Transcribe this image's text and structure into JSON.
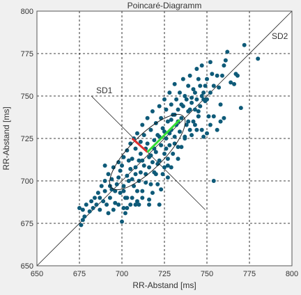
{
  "chart_data": {
    "type": "scatter",
    "title": "Poincaré-Diagramm",
    "xlabel": "RR-Abstand [ms]",
    "ylabel": "RR-Abstand [ms]",
    "xlim": [
      650,
      800
    ],
    "ylim": [
      650,
      800
    ],
    "xticks": [
      "650",
      "675",
      "700",
      "725",
      "750",
      "775",
      "800"
    ],
    "yticks": [
      "650",
      "675",
      "700",
      "725",
      "750",
      "775",
      "800"
    ],
    "grid": true,
    "annotations": {
      "sd1_label": "SD1",
      "sd2_label": "SD2"
    },
    "colors": {
      "points": "#0e5a78",
      "sd1_segment": "#e03030",
      "sd2_segment": "#33dd33",
      "background": "#ffffff",
      "grid": "#000000"
    },
    "ellipse": {
      "center": [
        715,
        717
      ],
      "sd1": 9,
      "sd2": 27,
      "angle_deg": 45
    },
    "sd1_segment": {
      "from": [
        715,
        717
      ],
      "to": [
        706,
        725
      ]
    },
    "sd2_segment": {
      "from": [
        715,
        717
      ],
      "to": [
        734,
        736
      ]
    },
    "sd1_axis": {
      "from": [
        682,
        750
      ],
      "to": [
        749,
        683
      ]
    },
    "identity_line": {
      "from": [
        650,
        650
      ],
      "to": [
        800,
        800
      ]
    },
    "points": [
      [
        675,
        684
      ],
      [
        676,
        674
      ],
      [
        677,
        677
      ],
      [
        678,
        679
      ],
      [
        677,
        683
      ],
      [
        679,
        686
      ],
      [
        681,
        682
      ],
      [
        682,
        688
      ],
      [
        683,
        684
      ],
      [
        684,
        690
      ],
      [
        685,
        686
      ],
      [
        686,
        693
      ],
      [
        687,
        690
      ],
      [
        687,
        683
      ],
      [
        688,
        697
      ],
      [
        689,
        688
      ],
      [
        690,
        694
      ],
      [
        690,
        700
      ],
      [
        691,
        686
      ],
      [
        692,
        704
      ],
      [
        693,
        690
      ],
      [
        693,
        697
      ],
      [
        694,
        701
      ],
      [
        695,
        708
      ],
      [
        695,
        683
      ],
      [
        696,
        694
      ],
      [
        697,
        698
      ],
      [
        698,
        702
      ],
      [
        698,
        711
      ],
      [
        699,
        706
      ],
      [
        700,
        676
      ],
      [
        701,
        684
      ],
      [
        700,
        709
      ],
      [
        701,
        714
      ],
      [
        702,
        681
      ],
      [
        702,
        690
      ],
      [
        703,
        703
      ],
      [
        703,
        718
      ],
      [
        704,
        700
      ],
      [
        705,
        707
      ],
      [
        705,
        722
      ],
      [
        706,
        713
      ],
      [
        706,
        690
      ],
      [
        707,
        697
      ],
      [
        707,
        725
      ],
      [
        708,
        719
      ],
      [
        708,
        704
      ],
      [
        709,
        688
      ],
      [
        709,
        728
      ],
      [
        710,
        712
      ],
      [
        710,
        700
      ],
      [
        711,
        723
      ],
      [
        711,
        716
      ],
      [
        712,
        733
      ],
      [
        712,
        694
      ],
      [
        713,
        709
      ],
      [
        713,
        727
      ],
      [
        714,
        704
      ],
      [
        714,
        719
      ],
      [
        715,
        722
      ],
      [
        715,
        737
      ],
      [
        716,
        689
      ],
      [
        716,
        714
      ],
      [
        717,
        730
      ],
      [
        717,
        698
      ],
      [
        718,
        711
      ],
      [
        718,
        741
      ],
      [
        719,
        724
      ],
      [
        719,
        705
      ],
      [
        720,
        717
      ],
      [
        720,
        734
      ],
      [
        721,
        698
      ],
      [
        721,
        727
      ],
      [
        722,
        744
      ],
      [
        722,
        712
      ],
      [
        723,
        721
      ],
      [
        723,
        737
      ],
      [
        724,
        704
      ],
      [
        724,
        731
      ],
      [
        725,
        716
      ],
      [
        725,
        748
      ],
      [
        726,
        725
      ],
      [
        726,
        742
      ],
      [
        727,
        735
      ],
      [
        727,
        709
      ],
      [
        728,
        721
      ],
      [
        728,
        752
      ],
      [
        729,
        730
      ],
      [
        729,
        745
      ],
      [
        730,
        716
      ],
      [
        730,
        739
      ],
      [
        731,
        726
      ],
      [
        731,
        757
      ],
      [
        732,
        733
      ],
      [
        732,
        748
      ],
      [
        733,
        720
      ],
      [
        733,
        742
      ],
      [
        734,
        752
      ],
      [
        734,
        729
      ],
      [
        735,
        737
      ],
      [
        736,
        760
      ],
      [
        736,
        744
      ],
      [
        737,
        725
      ],
      [
        737,
        750
      ],
      [
        738,
        733
      ],
      [
        739,
        756
      ],
      [
        739,
        741
      ],
      [
        740,
        730
      ],
      [
        740,
        762
      ],
      [
        741,
        746
      ],
      [
        742,
        735
      ],
      [
        742,
        754
      ],
      [
        743,
        742
      ],
      [
        744,
        766
      ],
      [
        744,
        748
      ],
      [
        745,
        738
      ],
      [
        746,
        756
      ],
      [
        746,
        744
      ],
      [
        747,
        768
      ],
      [
        748,
        752
      ],
      [
        748,
        726
      ],
      [
        749,
        747
      ],
      [
        750,
        760
      ],
      [
        751,
        738
      ],
      [
        752,
        752
      ],
      [
        752,
        770
      ],
      [
        754,
        700
      ],
      [
        754,
        756
      ],
      [
        756,
        762
      ],
      [
        758,
        745
      ],
      [
        760,
        768
      ],
      [
        762,
        776
      ],
      [
        766,
        757
      ],
      [
        768,
        762
      ],
      [
        770,
        743
      ],
      [
        772,
        780
      ],
      [
        780,
        772
      ],
      [
        699,
        693
      ],
      [
        701,
        697
      ],
      [
        703,
        690
      ],
      [
        704,
        712
      ],
      [
        706,
        701
      ],
      [
        708,
        708
      ],
      [
        709,
        694
      ],
      [
        711,
        705
      ],
      [
        712,
        712
      ],
      [
        714,
        699
      ],
      [
        716,
        708
      ],
      [
        717,
        715
      ],
      [
        719,
        719
      ],
      [
        720,
        704
      ],
      [
        721,
        710
      ],
      [
        722,
        726
      ],
      [
        723,
        695
      ],
      [
        725,
        729
      ],
      [
        726,
        719
      ],
      [
        727,
        713
      ],
      [
        728,
        728
      ],
      [
        729,
        736
      ],
      [
        731,
        739
      ],
      [
        733,
        735
      ],
      [
        735,
        745
      ],
      [
        738,
        748
      ],
      [
        740,
        742
      ],
      [
        743,
        752
      ],
      [
        745,
        760
      ],
      [
        747,
        750
      ],
      [
        749,
        756
      ],
      [
        750,
        748
      ],
      [
        753,
        763
      ],
      [
        757,
        755
      ],
      [
        759,
        762
      ],
      [
        761,
        771
      ],
      [
        764,
        758
      ],
      [
        767,
        763
      ],
      [
        690,
        709
      ],
      [
        692,
        681
      ],
      [
        694,
        695
      ],
      [
        696,
        687
      ],
      [
        698,
        686
      ],
      [
        701,
        694
      ],
      [
        703,
        684
      ],
      [
        705,
        686
      ],
      [
        708,
        686
      ],
      [
        710,
        686
      ],
      [
        712,
        690
      ],
      [
        716,
        686
      ],
      [
        718,
        693
      ],
      [
        722,
        686
      ],
      [
        725,
        708
      ],
      [
        727,
        702
      ],
      [
        729,
        708
      ],
      [
        731,
        722
      ],
      [
        733,
        713
      ],
      [
        735,
        720
      ],
      [
        737,
        726
      ],
      [
        739,
        735
      ],
      [
        741,
        727
      ],
      [
        743,
        733
      ],
      [
        745,
        738
      ],
      [
        747,
        730
      ],
      [
        750,
        728
      ],
      [
        752,
        733
      ],
      [
        754,
        738
      ],
      [
        756,
        730
      ],
      [
        758,
        735
      ],
      [
        760,
        737
      ],
      [
        745,
        741
      ],
      [
        741,
        749
      ],
      [
        744,
        730
      ],
      [
        748,
        748
      ]
    ]
  }
}
